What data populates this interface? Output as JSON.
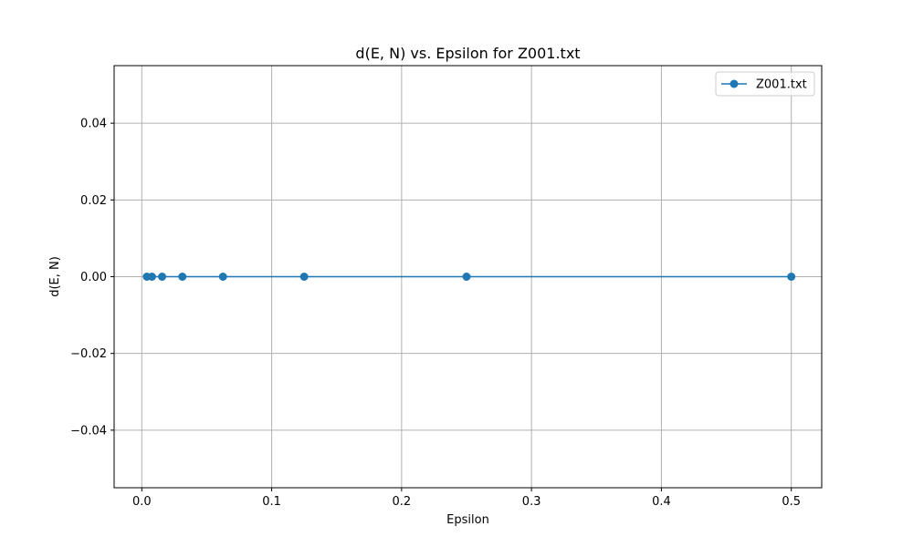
{
  "chart_data": {
    "type": "line",
    "title": "d(E, N) vs. Epsilon for Z001.txt",
    "xlabel": "Epsilon",
    "ylabel": "d(E, N)",
    "xlim": [
      -0.0213,
      0.5234
    ],
    "ylim": [
      -0.055,
      0.055
    ],
    "xticks": [
      0.0,
      0.1,
      0.2,
      0.3,
      0.4,
      0.5
    ],
    "xtick_labels": [
      "0.0",
      "0.1",
      "0.2",
      "0.3",
      "0.4",
      "0.5"
    ],
    "yticks": [
      -0.04,
      -0.02,
      0.0,
      0.02,
      0.04
    ],
    "ytick_labels": [
      "−0.04",
      "−0.02",
      "0.00",
      "0.02",
      "0.04"
    ],
    "grid": true,
    "legend_position": "top-right",
    "series": [
      {
        "name": "Z001.txt",
        "color": "#1f77b4",
        "marker": "circle",
        "x": [
          0.5,
          0.25,
          0.125,
          0.0625,
          0.03125,
          0.015625,
          0.0078125,
          0.00390625
        ],
        "y": [
          0.0,
          0.0,
          0.0,
          0.0,
          0.0,
          0.0,
          0.0,
          0.0
        ]
      }
    ]
  }
}
